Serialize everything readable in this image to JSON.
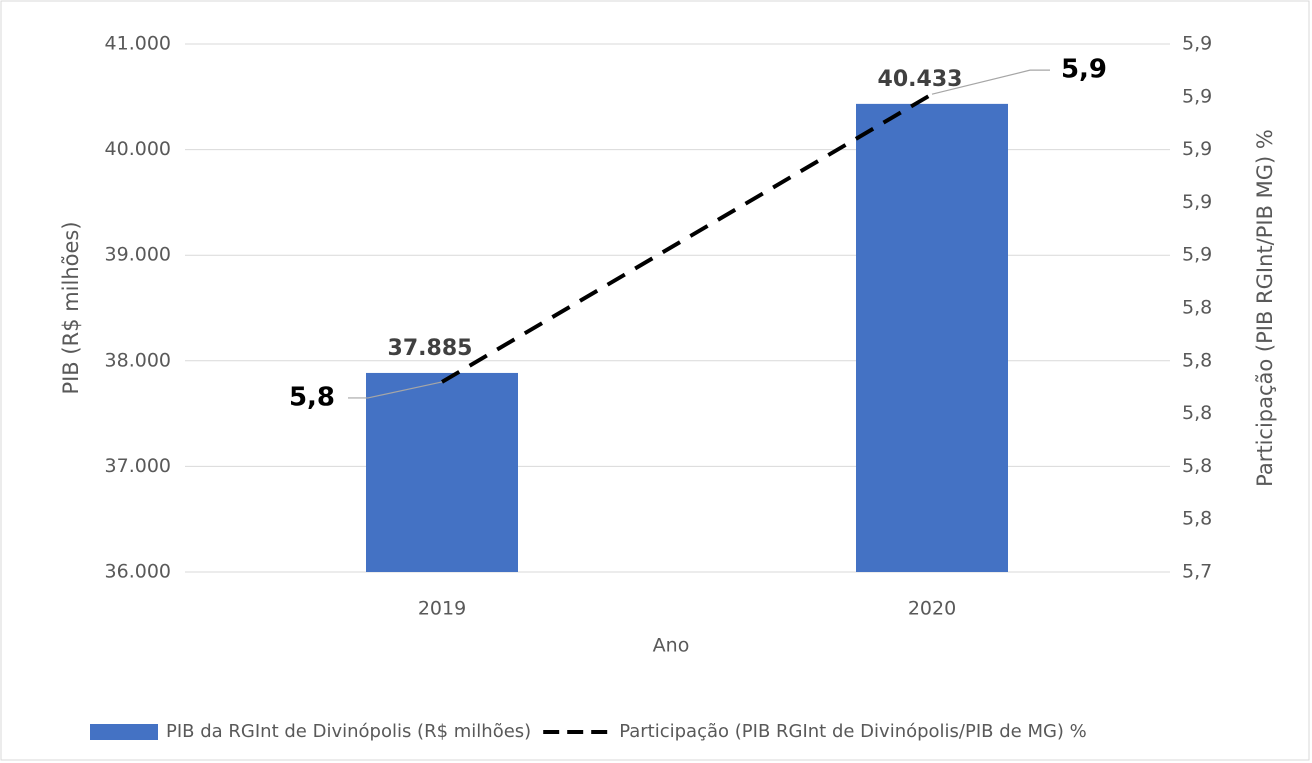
{
  "chart_data": {
    "type": "bar",
    "categories": [
      "2019",
      "2020"
    ],
    "x_label": "Ano",
    "y_label": "PIB (R$ milhões)",
    "y2_label": "Participação (PIB  RGInt/PIB MG) %",
    "series": [
      {
        "name": "PIB da RGInt de Divinópolis (R$ milhões)",
        "type": "bar",
        "color": "#4472c4",
        "values": [
          37885,
          40433
        ],
        "value_labels": [
          "37.885",
          "40.433"
        ]
      },
      {
        "name": "Participação (PIB RGInt de Divinópolis/PIB de MG) %",
        "type": "line",
        "axis": "y2",
        "color": "#000000",
        "dashed": true,
        "values": [
          5.812,
          5.921
        ],
        "value_labels": [
          "5,8",
          "5,9"
        ]
      }
    ],
    "ylim": [
      36000,
      41000
    ],
    "yticks": [
      {
        "value": 36000,
        "label": "36.000"
      },
      {
        "value": 37000,
        "label": "37.000"
      },
      {
        "value": 38000,
        "label": "38.000"
      },
      {
        "value": 39000,
        "label": "39.000"
      },
      {
        "value": 40000,
        "label": "40.000"
      },
      {
        "value": 41000,
        "label": "41.000"
      }
    ],
    "y2lim": [
      5.74,
      5.94
    ],
    "y2ticks": [
      {
        "value": 5.74,
        "label": "5,7"
      },
      {
        "value": 5.76,
        "label": "5,8"
      },
      {
        "value": 5.78,
        "label": "5,8"
      },
      {
        "value": 5.8,
        "label": "5,8"
      },
      {
        "value": 5.82,
        "label": "5,8"
      },
      {
        "value": 5.84,
        "label": "5,8"
      },
      {
        "value": 5.86,
        "label": "5,9"
      },
      {
        "value": 5.88,
        "label": "5,9"
      },
      {
        "value": 5.9,
        "label": "5,9"
      },
      {
        "value": 5.92,
        "label": "5,9"
      },
      {
        "value": 5.94,
        "label": "5,9"
      }
    ],
    "grid": true,
    "legend": "bottom"
  }
}
